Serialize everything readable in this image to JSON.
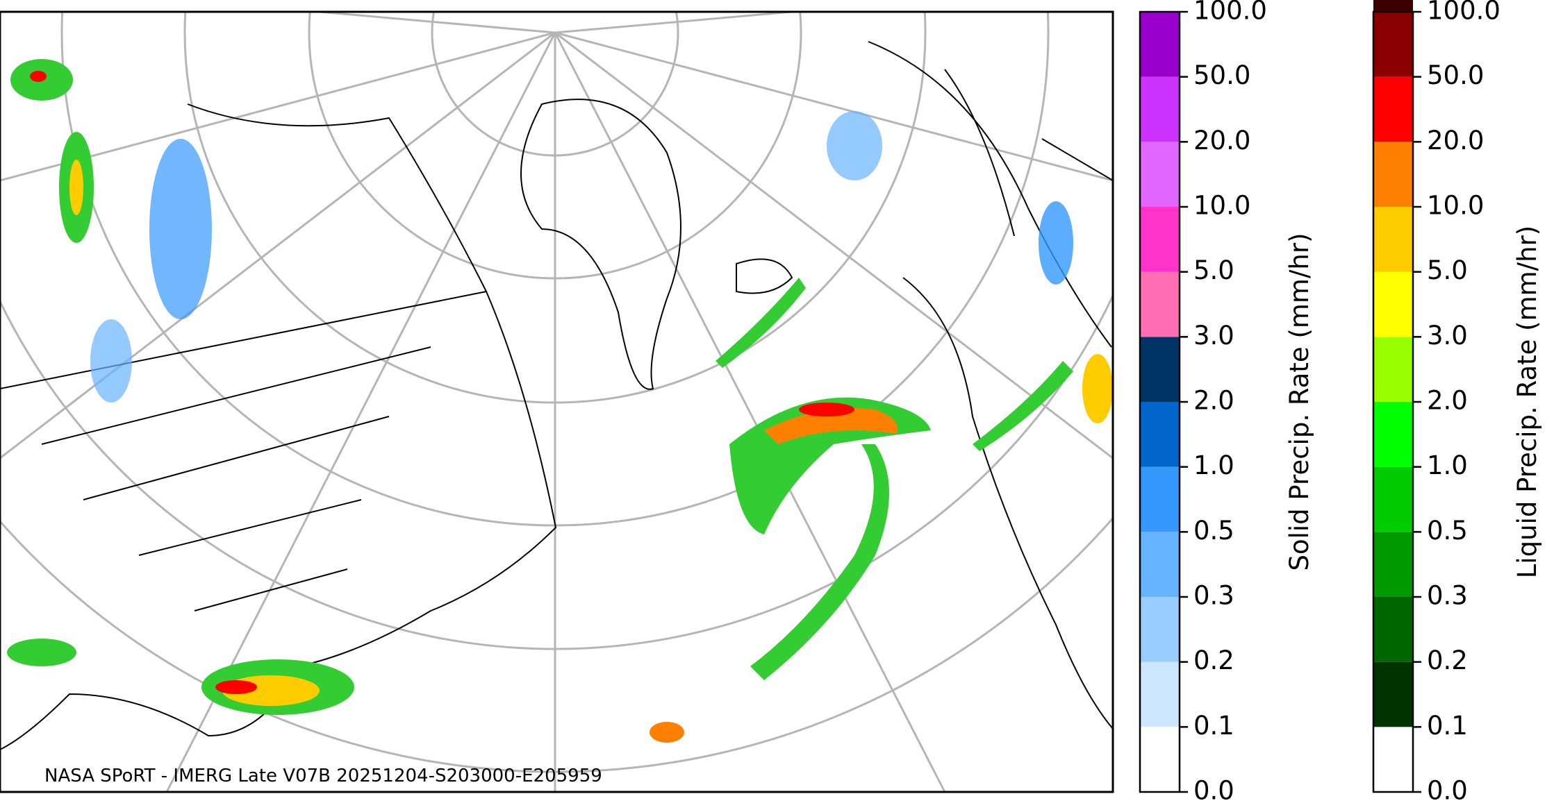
{
  "caption": "NASA SPoRT - IMERG Late V07B 20251204-S203000-E205959",
  "colorbars": [
    {
      "label": "Solid Precip. Rate (mm/hr)",
      "ticks": [
        "0.0",
        "0.1",
        "0.2",
        "0.3",
        "0.5",
        "1.0",
        "2.0",
        "3.0",
        "5.0",
        "10.0",
        "20.0",
        "50.0",
        "100.0"
      ],
      "colors": [
        "#ffffff",
        "#cce6ff",
        "#99ccff",
        "#66b3ff",
        "#3399ff",
        "#0066cc",
        "#003366",
        "#ff6eb4",
        "#ff33cc",
        "#e066ff",
        "#cc33ff",
        "#9900cc"
      ]
    },
    {
      "label": "Liquid Precip. Rate (mm/hr)",
      "ticks": [
        "0.0",
        "0.1",
        "0.2",
        "0.3",
        "0.5",
        "1.0",
        "2.0",
        "3.0",
        "5.0",
        "10.0",
        "20.0",
        "50.0",
        "100.0"
      ],
      "colors": [
        "#ffffff",
        "#003300",
        "#006600",
        "#009900",
        "#00cc00",
        "#00ff00",
        "#99ff00",
        "#ffff00",
        "#ffcc00",
        "#ff8000",
        "#ff0000",
        "#8b0000",
        "#3d0000"
      ]
    }
  ]
}
